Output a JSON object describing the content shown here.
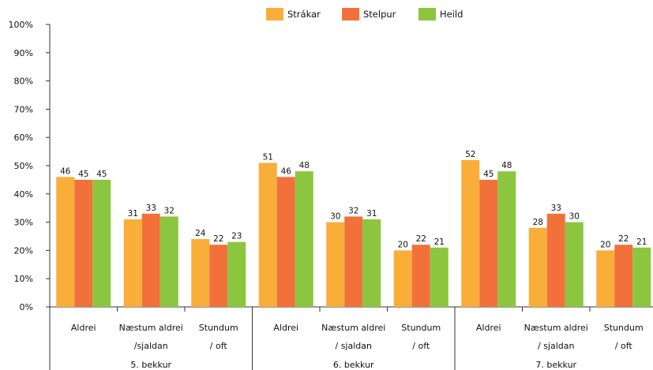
{
  "chart_data": {
    "type": "bar",
    "legend_position": "top-center",
    "grid": false,
    "ylim": [
      0,
      100
    ],
    "y_ticks": [
      "0%",
      "10%",
      "20%",
      "30%",
      "40%",
      "50%",
      "60%",
      "70%",
      "80%",
      "90%",
      "100%"
    ],
    "colors": [
      "#F9AE3A",
      "#F2713A",
      "#8CC63F"
    ],
    "series": [
      {
        "name": "Strákar"
      },
      {
        "name": "Stelpur"
      },
      {
        "name": "Heild"
      }
    ],
    "groups": [
      {
        "name": "5. bekkur",
        "categories": [
          {
            "label": [
              "Aldrei"
            ],
            "values": [
              46,
              45,
              45
            ]
          },
          {
            "label": [
              "Næstum aldrei",
              "/sjaldan"
            ],
            "values": [
              31,
              33,
              32
            ]
          },
          {
            "label": [
              "Stundum",
              "/ oft"
            ],
            "values": [
              24,
              22,
              23
            ]
          }
        ]
      },
      {
        "name": "6. bekkur",
        "categories": [
          {
            "label": [
              "Aldrei"
            ],
            "values": [
              51,
              46,
              48
            ]
          },
          {
            "label": [
              "Næstum aldrei",
              "/ sjaldan"
            ],
            "values": [
              30,
              32,
              31
            ]
          },
          {
            "label": [
              "Stundum",
              "/ oft"
            ],
            "values": [
              20,
              22,
              21
            ]
          }
        ]
      },
      {
        "name": "7. bekkur",
        "categories": [
          {
            "label": [
              "Aldrei"
            ],
            "values": [
              52,
              45,
              48
            ]
          },
          {
            "label": [
              "Næstum aldrei",
              "/ sjaldan"
            ],
            "values": [
              28,
              33,
              30
            ]
          },
          {
            "label": [
              "Stundum",
              "/ oft"
            ],
            "values": [
              20,
              22,
              21
            ]
          }
        ]
      }
    ]
  }
}
